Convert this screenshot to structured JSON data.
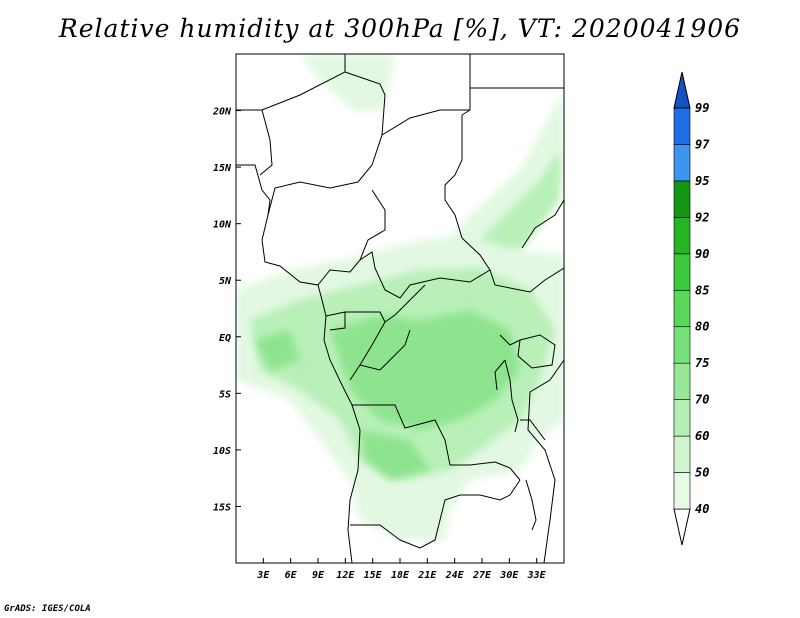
{
  "title": "Relative humidity at 300hPa [%], VT: 2020041906",
  "credit": "GrADS: IGES/COLA",
  "map": {
    "lon_range": [
      0,
      36
    ],
    "lat_range": [
      -20,
      25
    ],
    "lon_labels": [
      "3E",
      "6E",
      "9E",
      "12E",
      "15E",
      "18E",
      "21E",
      "24E",
      "27E",
      "30E",
      "33E"
    ],
    "lon_values": [
      3,
      6,
      9,
      12,
      15,
      18,
      21,
      24,
      27,
      30,
      33
    ],
    "lat_labels": [
      "20N",
      "15N",
      "10N",
      "5N",
      "EQ",
      "5S",
      "10S",
      "15S"
    ],
    "lat_values": [
      20,
      15,
      10,
      5,
      0,
      -5,
      -10,
      -15
    ]
  },
  "colorbar": {
    "levels": [
      "40",
      "50",
      "60",
      "70",
      "75",
      "80",
      "85",
      "90",
      "92",
      "95",
      "97",
      "99"
    ],
    "colors": [
      "#ffffff",
      "#e6fae6",
      "#d0f5d0",
      "#b4efb4",
      "#96e896",
      "#78e078",
      "#5ad85a",
      "#3cc83c",
      "#24b424",
      "#149614",
      "#3c96f0",
      "#1e6ee6",
      "#1450c8"
    ]
  }
}
